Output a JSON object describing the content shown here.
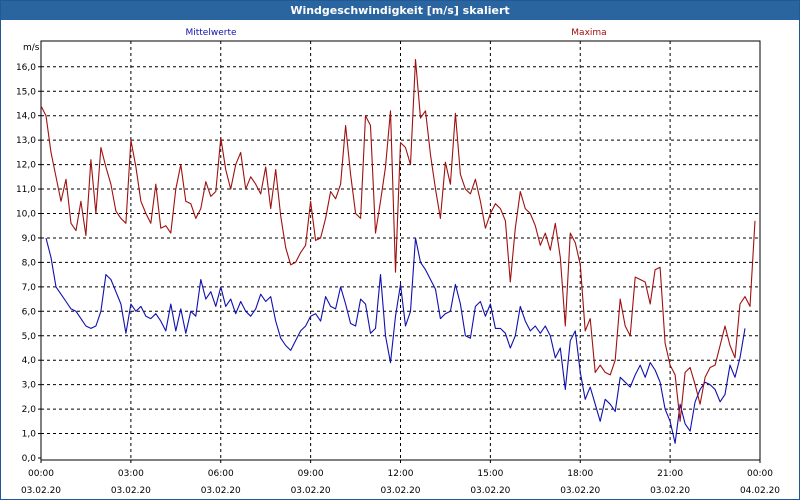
{
  "window": {
    "title": "Windgeschwindigkeit [m/s] skaliert"
  },
  "colors": {
    "mean": "#1010b0",
    "max": "#a01010",
    "grid": "#000000",
    "titlebar": "#2a65a0"
  },
  "chart_data": {
    "type": "line",
    "title": "Windgeschwindigkeit [m/s] skaliert",
    "ylabel": "m/s",
    "xlabel": "",
    "ylim": [
      0,
      17
    ],
    "yticks": [
      "0,0",
      "1,0",
      "2,0",
      "3,0",
      "4,0",
      "5,0",
      "6,0",
      "7,0",
      "8,0",
      "9,0",
      "10,0",
      "11,0",
      "12,0",
      "13,0",
      "14,0",
      "15,0",
      "16,0"
    ],
    "xlim": [
      "03.02.20 00:00",
      "04.02.20 00:00"
    ],
    "xticks": [
      {
        "time": "00:00",
        "date": "03.02.20"
      },
      {
        "time": "03:00",
        "date": "03.02.20"
      },
      {
        "time": "06:00",
        "date": "03.02.20"
      },
      {
        "time": "09:00",
        "date": "03.02.20"
      },
      {
        "time": "12:00",
        "date": "03.02.20"
      },
      {
        "time": "15:00",
        "date": "03.02.20"
      },
      {
        "time": "18:00",
        "date": "03.02.20"
      },
      {
        "time": "21:00",
        "date": "03.02.20"
      },
      {
        "time": "00:00",
        "date": "04.02.20"
      }
    ],
    "grid": true,
    "legend": "top",
    "series": [
      {
        "name": "Mittelwerte",
        "color": "#1010b0",
        "points": [
          [
            "00:10",
            9.0
          ],
          [
            "00:20",
            8.2
          ],
          [
            "00:30",
            7.0
          ],
          [
            "00:40",
            6.7
          ],
          [
            "00:50",
            6.4
          ],
          [
            "01:00",
            6.1
          ],
          [
            "01:10",
            6.0
          ],
          [
            "01:20",
            5.7
          ],
          [
            "01:30",
            5.4
          ],
          [
            "01:40",
            5.3
          ],
          [
            "01:50",
            5.4
          ],
          [
            "02:00",
            6.0
          ],
          [
            "02:10",
            7.5
          ],
          [
            "02:20",
            7.3
          ],
          [
            "02:30",
            6.8
          ],
          [
            "02:40",
            6.3
          ],
          [
            "02:50",
            5.1
          ],
          [
            "03:00",
            6.3
          ],
          [
            "03:10",
            6.0
          ],
          [
            "03:20",
            6.2
          ],
          [
            "03:30",
            5.8
          ],
          [
            "03:40",
            5.7
          ],
          [
            "03:50",
            5.9
          ],
          [
            "04:00",
            5.6
          ],
          [
            "04:10",
            5.2
          ],
          [
            "04:20",
            6.3
          ],
          [
            "04:30",
            5.2
          ],
          [
            "04:40",
            6.1
          ],
          [
            "04:50",
            5.1
          ],
          [
            "05:00",
            6.0
          ],
          [
            "05:10",
            5.8
          ],
          [
            "05:20",
            7.3
          ],
          [
            "05:30",
            6.5
          ],
          [
            "05:40",
            6.8
          ],
          [
            "05:50",
            6.2
          ],
          [
            "06:00",
            7.0
          ],
          [
            "06:10",
            6.2
          ],
          [
            "06:20",
            6.5
          ],
          [
            "06:30",
            5.9
          ],
          [
            "06:40",
            6.4
          ],
          [
            "06:50",
            6.0
          ],
          [
            "07:00",
            5.8
          ],
          [
            "07:10",
            6.1
          ],
          [
            "07:20",
            6.7
          ],
          [
            "07:30",
            6.4
          ],
          [
            "07:40",
            6.6
          ],
          [
            "07:50",
            5.6
          ],
          [
            "08:00",
            4.9
          ],
          [
            "08:10",
            4.6
          ],
          [
            "08:20",
            4.4
          ],
          [
            "08:30",
            4.8
          ],
          [
            "08:40",
            5.2
          ],
          [
            "08:50",
            5.4
          ],
          [
            "09:00",
            5.8
          ],
          [
            "09:10",
            5.9
          ],
          [
            "09:20",
            5.6
          ],
          [
            "09:30",
            6.6
          ],
          [
            "09:40",
            6.2
          ],
          [
            "09:50",
            6.1
          ],
          [
            "10:00",
            7.0
          ],
          [
            "10:10",
            6.3
          ],
          [
            "10:20",
            5.5
          ],
          [
            "10:30",
            5.4
          ],
          [
            "10:40",
            6.5
          ],
          [
            "10:50",
            6.3
          ],
          [
            "11:00",
            5.1
          ],
          [
            "11:10",
            5.3
          ],
          [
            "11:20",
            7.5
          ],
          [
            "11:30",
            5.0
          ],
          [
            "11:40",
            3.9
          ],
          [
            "11:50",
            5.8
          ],
          [
            "12:00",
            7.1
          ],
          [
            "12:10",
            5.4
          ],
          [
            "12:20",
            6.0
          ],
          [
            "12:30",
            9.0
          ],
          [
            "12:40",
            8.0
          ],
          [
            "12:50",
            7.7
          ],
          [
            "13:00",
            7.3
          ],
          [
            "13:10",
            6.9
          ],
          [
            "13:20",
            5.7
          ],
          [
            "13:30",
            5.9
          ],
          [
            "13:40",
            6.0
          ],
          [
            "13:50",
            7.1
          ],
          [
            "14:00",
            6.3
          ],
          [
            "14:10",
            5.0
          ],
          [
            "14:20",
            4.9
          ],
          [
            "14:30",
            6.2
          ],
          [
            "14:40",
            6.4
          ],
          [
            "14:50",
            5.8
          ],
          [
            "15:00",
            6.3
          ],
          [
            "15:10",
            5.3
          ],
          [
            "15:20",
            5.3
          ],
          [
            "15:30",
            5.1
          ],
          [
            "15:40",
            4.5
          ],
          [
            "15:50",
            5.0
          ],
          [
            "16:00",
            6.2
          ],
          [
            "16:10",
            5.6
          ],
          [
            "16:20",
            5.2
          ],
          [
            "16:30",
            5.4
          ],
          [
            "16:40",
            5.1
          ],
          [
            "16:50",
            5.4
          ],
          [
            "17:00",
            5.0
          ],
          [
            "17:10",
            4.1
          ],
          [
            "17:20",
            4.5
          ],
          [
            "17:30",
            2.8
          ],
          [
            "17:40",
            4.8
          ],
          [
            "17:50",
            5.2
          ],
          [
            "18:00",
            3.5
          ],
          [
            "18:10",
            2.4
          ],
          [
            "18:20",
            2.9
          ],
          [
            "18:30",
            2.2
          ],
          [
            "18:40",
            1.5
          ],
          [
            "18:50",
            2.4
          ],
          [
            "19:00",
            2.2
          ],
          [
            "19:10",
            1.9
          ],
          [
            "19:20",
            3.3
          ],
          [
            "19:30",
            3.1
          ],
          [
            "19:40",
            2.9
          ],
          [
            "19:50",
            3.4
          ],
          [
            "20:00",
            3.8
          ],
          [
            "20:10",
            3.3
          ],
          [
            "20:20",
            3.9
          ],
          [
            "20:30",
            3.6
          ],
          [
            "20:40",
            3.1
          ],
          [
            "20:50",
            2.0
          ],
          [
            "21:00",
            1.5
          ],
          [
            "21:10",
            0.6
          ],
          [
            "21:20",
            2.2
          ],
          [
            "21:30",
            1.4
          ],
          [
            "21:40",
            1.1
          ],
          [
            "21:50",
            2.3
          ],
          [
            "22:00",
            2.8
          ],
          [
            "22:10",
            3.1
          ],
          [
            "22:20",
            3.0
          ],
          [
            "22:30",
            2.8
          ],
          [
            "22:40",
            2.3
          ],
          [
            "22:50",
            2.6
          ],
          [
            "23:00",
            3.8
          ],
          [
            "23:10",
            3.3
          ],
          [
            "23:20",
            4.1
          ],
          [
            "23:30",
            5.3
          ]
        ]
      },
      {
        "name": "Maxima",
        "color": "#a01010",
        "points": [
          [
            "00:00",
            14.4
          ],
          [
            "00:10",
            14.0
          ],
          [
            "00:20",
            12.5
          ],
          [
            "00:30",
            11.5
          ],
          [
            "00:40",
            10.5
          ],
          [
            "00:50",
            11.4
          ],
          [
            "01:00",
            9.6
          ],
          [
            "01:10",
            9.3
          ],
          [
            "01:20",
            10.5
          ],
          [
            "01:30",
            9.1
          ],
          [
            "01:40",
            12.2
          ],
          [
            "01:50",
            10.0
          ],
          [
            "02:00",
            12.7
          ],
          [
            "02:10",
            11.9
          ],
          [
            "02:20",
            11.2
          ],
          [
            "02:30",
            10.1
          ],
          [
            "02:40",
            9.8
          ],
          [
            "02:50",
            9.6
          ],
          [
            "03:00",
            13.0
          ],
          [
            "03:10",
            11.9
          ],
          [
            "03:20",
            10.5
          ],
          [
            "03:30",
            10.0
          ],
          [
            "03:40",
            9.6
          ],
          [
            "03:50",
            11.2
          ],
          [
            "04:00",
            9.4
          ],
          [
            "04:10",
            9.5
          ],
          [
            "04:20",
            9.2
          ],
          [
            "04:30",
            11.0
          ],
          [
            "04:40",
            12.0
          ],
          [
            "04:50",
            10.5
          ],
          [
            "05:00",
            10.4
          ],
          [
            "05:10",
            9.8
          ],
          [
            "05:20",
            10.2
          ],
          [
            "05:30",
            11.3
          ],
          [
            "05:40",
            10.7
          ],
          [
            "05:50",
            10.9
          ],
          [
            "06:00",
            13.1
          ],
          [
            "06:10",
            11.8
          ],
          [
            "06:20",
            11.0
          ],
          [
            "06:30",
            12.0
          ],
          [
            "06:40",
            12.5
          ],
          [
            "06:50",
            11.0
          ],
          [
            "07:00",
            11.5
          ],
          [
            "07:10",
            11.2
          ],
          [
            "07:20",
            10.8
          ],
          [
            "07:30",
            11.9
          ],
          [
            "07:40",
            10.2
          ],
          [
            "07:50",
            11.8
          ],
          [
            "08:00",
            9.9
          ],
          [
            "08:10",
            8.6
          ],
          [
            "08:20",
            7.9
          ],
          [
            "08:30",
            8.0
          ],
          [
            "08:40",
            8.4
          ],
          [
            "08:50",
            8.7
          ],
          [
            "09:00",
            10.5
          ],
          [
            "09:10",
            8.9
          ],
          [
            "09:20",
            9.0
          ],
          [
            "09:30",
            9.8
          ],
          [
            "09:40",
            10.9
          ],
          [
            "09:50",
            10.6
          ],
          [
            "10:00",
            11.2
          ],
          [
            "10:10",
            13.6
          ],
          [
            "10:20",
            11.6
          ],
          [
            "10:30",
            10.0
          ],
          [
            "10:40",
            9.8
          ],
          [
            "10:50",
            14.0
          ],
          [
            "11:00",
            13.6
          ],
          [
            "11:10",
            9.2
          ],
          [
            "11:20",
            10.5
          ],
          [
            "11:30",
            11.9
          ],
          [
            "11:40",
            14.2
          ],
          [
            "11:50",
            7.6
          ],
          [
            "12:00",
            12.9
          ],
          [
            "12:10",
            12.7
          ],
          [
            "12:20",
            12.0
          ],
          [
            "12:30",
            16.3
          ],
          [
            "12:40",
            13.9
          ],
          [
            "12:50",
            14.2
          ],
          [
            "13:00",
            12.4
          ],
          [
            "13:10",
            11.0
          ],
          [
            "13:20",
            9.8
          ],
          [
            "13:30",
            12.1
          ],
          [
            "13:40",
            11.2
          ],
          [
            "13:50",
            14.1
          ],
          [
            "14:00",
            11.6
          ],
          [
            "14:10",
            11.0
          ],
          [
            "14:20",
            10.8
          ],
          [
            "14:30",
            11.4
          ],
          [
            "14:40",
            10.5
          ],
          [
            "14:50",
            9.4
          ],
          [
            "15:00",
            10.0
          ],
          [
            "15:10",
            10.4
          ],
          [
            "15:20",
            10.2
          ],
          [
            "15:30",
            9.7
          ],
          [
            "15:40",
            7.2
          ],
          [
            "15:50",
            9.4
          ],
          [
            "16:00",
            10.9
          ],
          [
            "16:10",
            10.2
          ],
          [
            "16:20",
            10.0
          ],
          [
            "16:30",
            9.5
          ],
          [
            "16:40",
            8.7
          ],
          [
            "16:50",
            9.2
          ],
          [
            "17:00",
            8.5
          ],
          [
            "17:10",
            9.6
          ],
          [
            "17:20",
            8.2
          ],
          [
            "17:30",
            5.4
          ],
          [
            "17:40",
            9.2
          ],
          [
            "17:50",
            8.8
          ],
          [
            "18:00",
            7.9
          ],
          [
            "18:10",
            5.2
          ],
          [
            "18:20",
            5.7
          ],
          [
            "18:30",
            3.5
          ],
          [
            "18:40",
            3.8
          ],
          [
            "18:50",
            3.5
          ],
          [
            "19:00",
            3.4
          ],
          [
            "19:10",
            4.0
          ],
          [
            "19:20",
            6.5
          ],
          [
            "19:30",
            5.4
          ],
          [
            "19:40",
            5.0
          ],
          [
            "19:50",
            7.4
          ],
          [
            "20:00",
            7.3
          ],
          [
            "20:10",
            7.2
          ],
          [
            "20:20",
            6.3
          ],
          [
            "20:30",
            7.7
          ],
          [
            "20:40",
            7.8
          ],
          [
            "20:50",
            4.7
          ],
          [
            "21:00",
            3.8
          ],
          [
            "21:10",
            3.4
          ],
          [
            "21:20",
            1.5
          ],
          [
            "21:30",
            3.5
          ],
          [
            "21:40",
            3.7
          ],
          [
            "21:50",
            3.0
          ],
          [
            "22:00",
            2.2
          ],
          [
            "22:10",
            3.3
          ],
          [
            "22:20",
            3.7
          ],
          [
            "22:30",
            3.8
          ],
          [
            "22:40",
            4.6
          ],
          [
            "22:50",
            5.4
          ],
          [
            "23:00",
            4.6
          ],
          [
            "23:10",
            4.1
          ],
          [
            "23:20",
            6.3
          ],
          [
            "23:30",
            6.6
          ],
          [
            "23:40",
            6.2
          ],
          [
            "23:50",
            9.7
          ]
        ]
      }
    ]
  }
}
